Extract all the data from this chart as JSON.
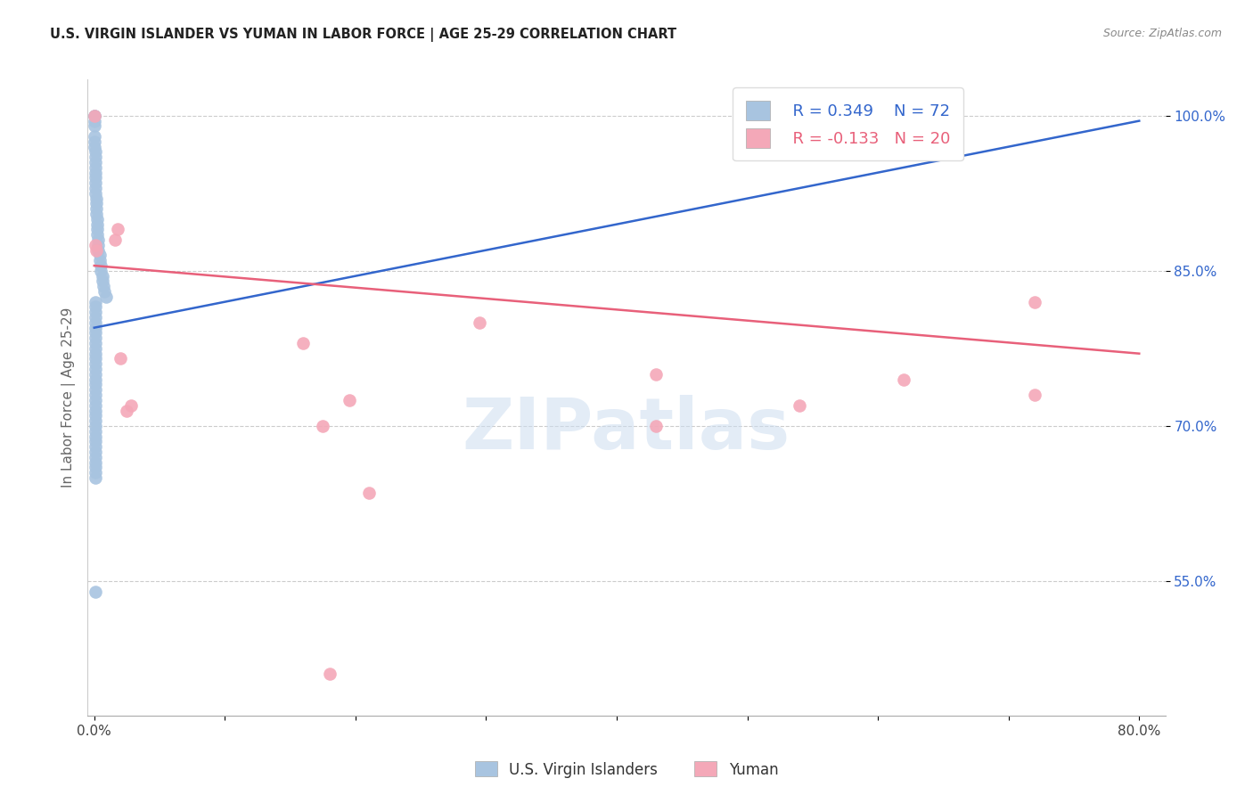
{
  "title": "U.S. VIRGIN ISLANDER VS YUMAN IN LABOR FORCE | AGE 25-29 CORRELATION CHART",
  "source": "Source: ZipAtlas.com",
  "ylabel": "In Labor Force | Age 25-29",
  "xlim": [
    -0.005,
    0.82
  ],
  "ylim": [
    0.42,
    1.035
  ],
  "xticks": [
    0.0,
    0.1,
    0.2,
    0.3,
    0.4,
    0.5,
    0.6,
    0.7,
    0.8
  ],
  "xticklabels": [
    "0.0%",
    "",
    "",
    "",
    "",
    "",
    "",
    "",
    "80.0%"
  ],
  "yticks": [
    0.55,
    0.7,
    0.85,
    1.0
  ],
  "yticklabels": [
    "55.0%",
    "70.0%",
    "85.0%",
    "100.0%"
  ],
  "blue_R": 0.349,
  "blue_N": 72,
  "pink_R": -0.133,
  "pink_N": 20,
  "blue_color": "#a8c4e0",
  "pink_color": "#f4a8b8",
  "blue_line_color": "#3366cc",
  "pink_line_color": "#e8607a",
  "watermark": "ZIPatlas",
  "legend_label_blue": "U.S. Virgin Islanders",
  "legend_label_pink": "Yuman",
  "blue_x": [
    0.0005,
    0.0005,
    0.0005,
    0.0005,
    0.0005,
    0.0005,
    0.0005,
    0.001,
    0.001,
    0.001,
    0.001,
    0.001,
    0.001,
    0.001,
    0.001,
    0.001,
    0.0012,
    0.0012,
    0.0015,
    0.0015,
    0.002,
    0.002,
    0.002,
    0.0025,
    0.003,
    0.003,
    0.003,
    0.004,
    0.004,
    0.005,
    0.005,
    0.006,
    0.006,
    0.007,
    0.008,
    0.009,
    0.001,
    0.001,
    0.001,
    0.001,
    0.001,
    0.001,
    0.001,
    0.001,
    0.001,
    0.001,
    0.001,
    0.001,
    0.001,
    0.001,
    0.001,
    0.001,
    0.001,
    0.001,
    0.001,
    0.001,
    0.001,
    0.001,
    0.001,
    0.001,
    0.001,
    0.001,
    0.001,
    0.001,
    0.001,
    0.001,
    0.001,
    0.001,
    0.001,
    0.001,
    0.001,
    0.001
  ],
  "blue_y": [
    1.0,
    1.0,
    0.995,
    0.99,
    0.98,
    0.975,
    0.97,
    0.965,
    0.96,
    0.955,
    0.95,
    0.945,
    0.94,
    0.935,
    0.93,
    0.925,
    0.92,
    0.915,
    0.91,
    0.905,
    0.9,
    0.895,
    0.89,
    0.885,
    0.88,
    0.875,
    0.87,
    0.865,
    0.86,
    0.855,
    0.85,
    0.845,
    0.84,
    0.835,
    0.83,
    0.825,
    0.82,
    0.815,
    0.81,
    0.805,
    0.8,
    0.795,
    0.79,
    0.785,
    0.78,
    0.775,
    0.77,
    0.765,
    0.76,
    0.755,
    0.75,
    0.745,
    0.74,
    0.735,
    0.73,
    0.725,
    0.72,
    0.715,
    0.71,
    0.705,
    0.7,
    0.695,
    0.69,
    0.685,
    0.68,
    0.675,
    0.67,
    0.665,
    0.66,
    0.655,
    0.65,
    0.54
  ],
  "pink_x": [
    0.0005,
    0.001,
    0.0015,
    0.016,
    0.018,
    0.02,
    0.025,
    0.028,
    0.16,
    0.175,
    0.195,
    0.21,
    0.295,
    0.43,
    0.43,
    0.54,
    0.62,
    0.72,
    0.72,
    0.18
  ],
  "pink_y": [
    1.0,
    0.875,
    0.87,
    0.88,
    0.89,
    0.765,
    0.715,
    0.72,
    0.78,
    0.7,
    0.725,
    0.635,
    0.8,
    0.75,
    0.7,
    0.72,
    0.745,
    0.82,
    0.73,
    0.46
  ],
  "blue_trendline_x": [
    0.0,
    0.8
  ],
  "blue_trendline_y": [
    0.795,
    0.995
  ],
  "pink_trendline_x": [
    0.0,
    0.8
  ],
  "pink_trendline_y": [
    0.855,
    0.77
  ]
}
